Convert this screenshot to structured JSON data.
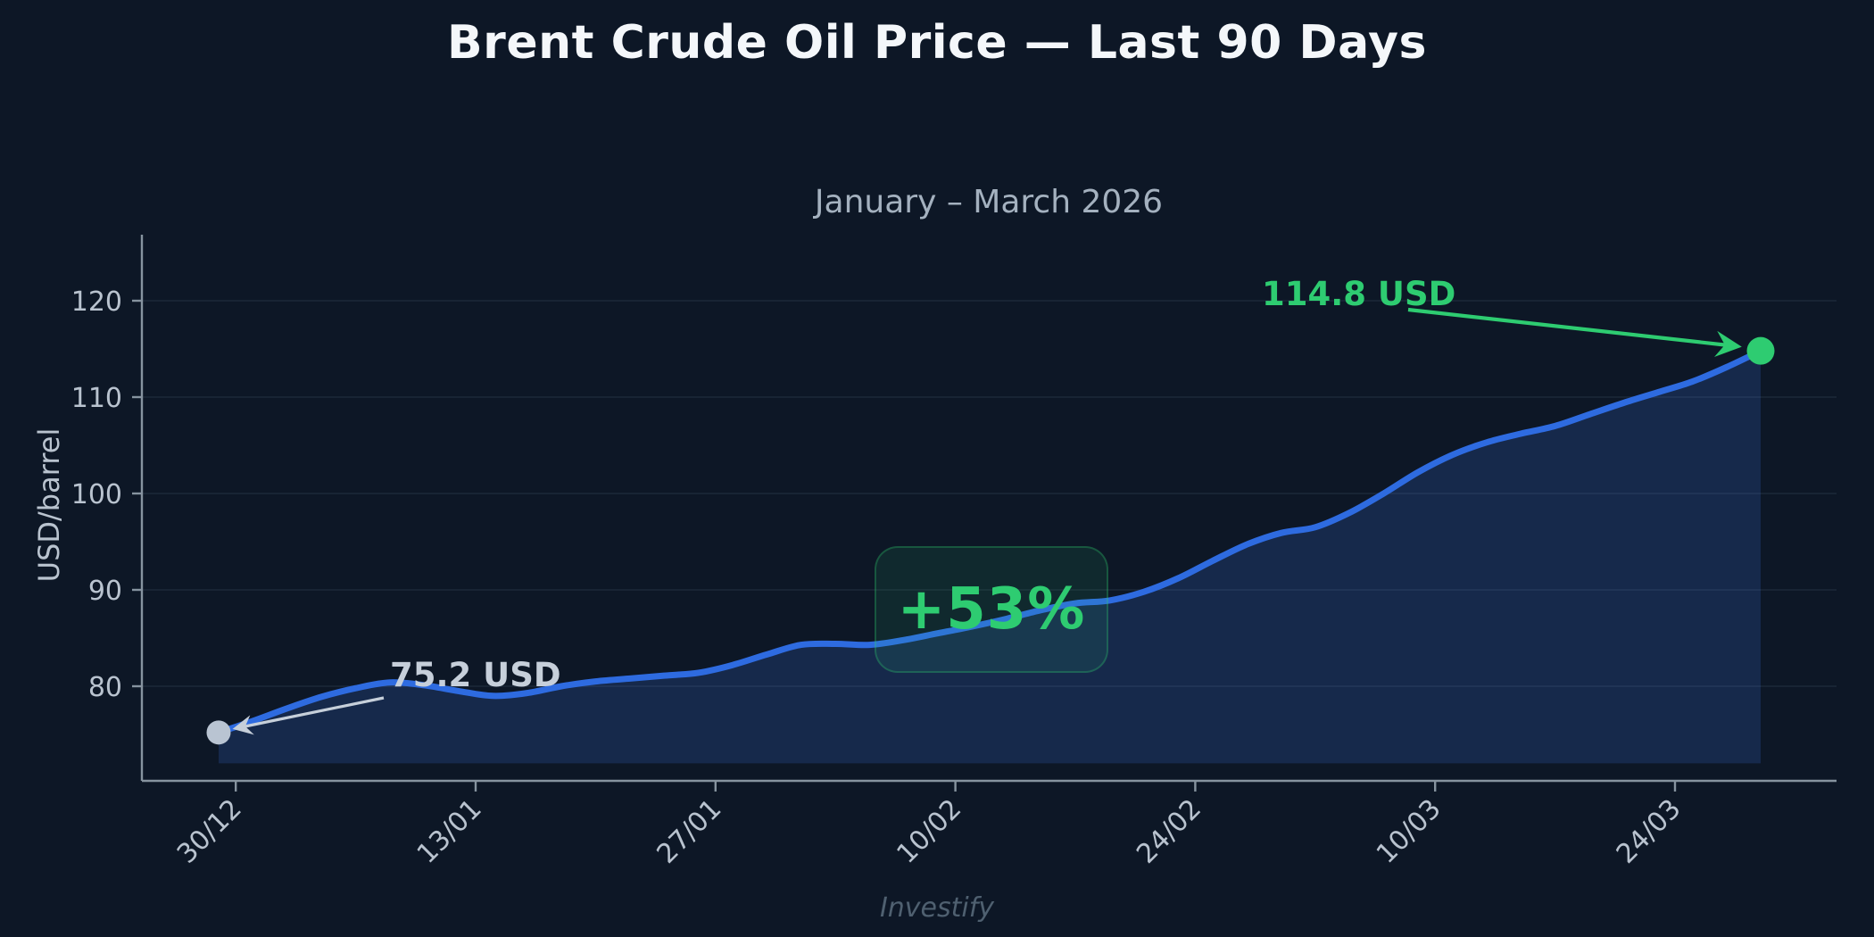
{
  "title": "Brent Crude Oil Price — Last 90 Days",
  "subtitle": "January – March 2026",
  "watermark": "Investify",
  "y_axis": {
    "label": "USD/barrel",
    "ticks": [
      80,
      90,
      100,
      110,
      120
    ]
  },
  "x_axis": {
    "tick_labels": [
      "30/12",
      "13/01",
      "27/01",
      "10/02",
      "24/02",
      "10/03",
      "24/03"
    ],
    "tick_days": [
      1,
      15,
      29,
      43,
      57,
      71,
      85
    ]
  },
  "chart_data": {
    "type": "area",
    "title": "Brent Crude Oil Price — Last 90 Days",
    "subtitle": "January – March 2026",
    "xlabel": "",
    "ylabel": "USD/barrel",
    "x_unit": "days (0 = first trading day shown, ~1 day before 30/12)",
    "x": [
      0,
      2,
      4,
      6,
      8,
      10,
      12,
      14,
      16,
      18,
      20,
      22,
      24,
      26,
      28,
      30,
      32,
      34,
      36,
      38,
      40,
      42,
      44,
      46,
      48,
      50,
      52,
      54,
      56,
      58,
      60,
      62,
      64,
      66,
      68,
      70,
      72,
      74,
      76,
      78,
      80,
      82,
      84,
      86,
      88,
      90
    ],
    "values": [
      75.2,
      76.4,
      77.7,
      78.9,
      79.8,
      80.4,
      80.1,
      79.5,
      79.0,
      79.3,
      80.0,
      80.5,
      80.8,
      81.1,
      81.4,
      82.2,
      83.3,
      84.3,
      84.4,
      84.3,
      84.8,
      85.5,
      86.2,
      87.0,
      87.9,
      88.6,
      88.9,
      89.8,
      91.2,
      93.0,
      94.7,
      95.9,
      96.5,
      98.0,
      100.0,
      102.2,
      104.0,
      105.3,
      106.2,
      107.0,
      108.2,
      109.4,
      110.5,
      111.6,
      113.1,
      114.8
    ],
    "xlim_days": [
      -4.5,
      94.2
    ],
    "ylim": [
      70.2,
      126.9
    ],
    "grid": "horizontal",
    "legend": "none",
    "line_color": "#2e6be0",
    "fill_color": "#16294b",
    "fill_baseline_value": 72.0
  },
  "annotations": {
    "start": {
      "label": "75.2 USD",
      "day": 0,
      "value": 75.2,
      "color": "#c6cfda"
    },
    "end": {
      "label": "114.8 USD",
      "day": 90,
      "value": 114.8,
      "color": "#2ecc71"
    },
    "change_badge": {
      "label": "+53%",
      "color": "#2ecc71"
    }
  },
  "colors": {
    "background": "#0d1726",
    "grid": "#a7c0e0",
    "spine": "#86939f",
    "tick_label": "#b9c3cf",
    "title": "#f4f7fa",
    "subtitle": "#a4b1bf",
    "green": "#2ecc71",
    "gray_marker": "#b9c4d2"
  }
}
